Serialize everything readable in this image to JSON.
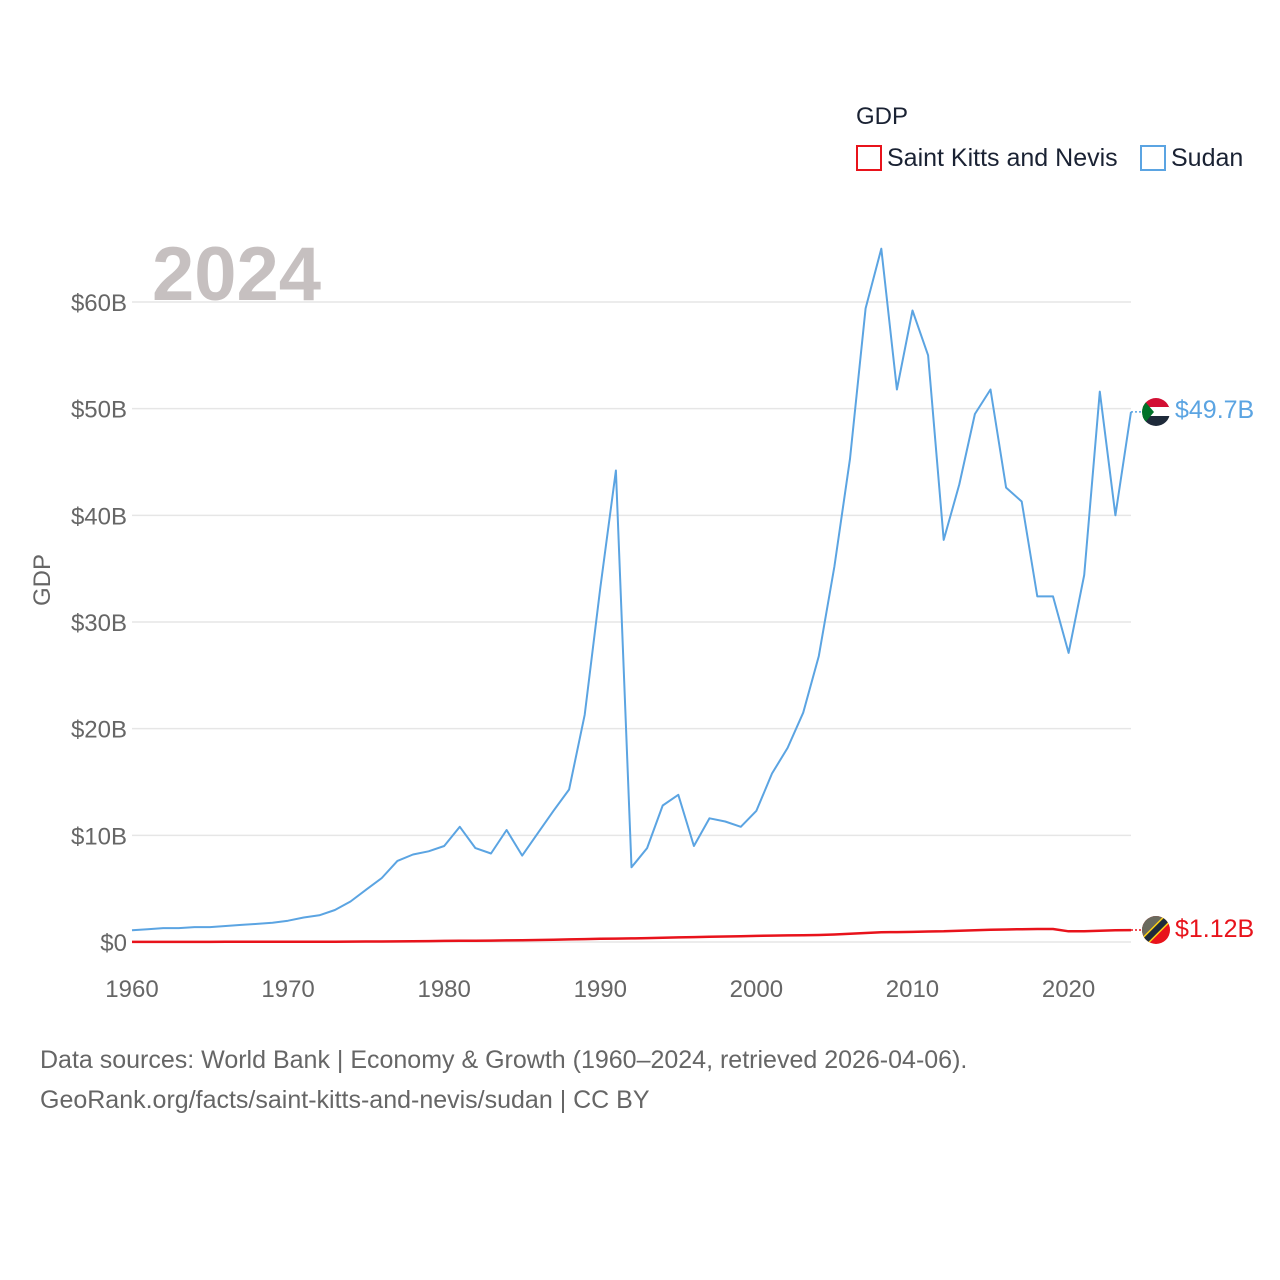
{
  "chart_data": {
    "type": "line",
    "title": "GDP",
    "year_label": "2024",
    "ylabel": "GDP",
    "xlabel": "",
    "x_ticks": [
      1960,
      1970,
      1980,
      1990,
      2000,
      2010,
      2020
    ],
    "y_ticks": [
      0,
      10,
      20,
      30,
      40,
      50,
      60
    ],
    "y_tick_labels": [
      "$0",
      "$10B",
      "$20B",
      "$30B",
      "$40B",
      "$50B",
      "$60B"
    ],
    "xlim": [
      1960,
      2024
    ],
    "ylim": [
      0,
      60
    ],
    "units": "billions USD",
    "legend_position": "top-right",
    "x": [
      1960,
      1961,
      1962,
      1963,
      1964,
      1965,
      1966,
      1967,
      1968,
      1969,
      1970,
      1971,
      1972,
      1973,
      1974,
      1975,
      1976,
      1977,
      1978,
      1979,
      1980,
      1981,
      1982,
      1983,
      1984,
      1985,
      1986,
      1987,
      1988,
      1989,
      1990,
      1991,
      1992,
      1993,
      1994,
      1995,
      1996,
      1997,
      1998,
      1999,
      2000,
      2001,
      2002,
      2003,
      2004,
      2005,
      2006,
      2007,
      2008,
      2009,
      2010,
      2011,
      2012,
      2013,
      2014,
      2015,
      2016,
      2017,
      2018,
      2019,
      2020,
      2021,
      2022,
      2023,
      2024
    ],
    "series": [
      {
        "name": "Saint Kitts and Nevis",
        "color": "#e8131b",
        "end_label": "$1.12B",
        "values": [
          0.01,
          0.01,
          0.01,
          0.01,
          0.01,
          0.01,
          0.02,
          0.02,
          0.02,
          0.02,
          0.02,
          0.02,
          0.03,
          0.03,
          0.04,
          0.05,
          0.05,
          0.06,
          0.07,
          0.08,
          0.1,
          0.11,
          0.12,
          0.13,
          0.15,
          0.17,
          0.19,
          0.21,
          0.24,
          0.27,
          0.3,
          0.32,
          0.34,
          0.37,
          0.4,
          0.43,
          0.46,
          0.5,
          0.52,
          0.54,
          0.57,
          0.6,
          0.62,
          0.63,
          0.66,
          0.7,
          0.78,
          0.84,
          0.92,
          0.93,
          0.95,
          0.98,
          1.0,
          1.06,
          1.1,
          1.14,
          1.17,
          1.2,
          1.22,
          1.22,
          1.0,
          1.01,
          1.05,
          1.1,
          1.12
        ]
      },
      {
        "name": "Sudan",
        "color": "#5ba4e2",
        "end_label": "$49.7B",
        "values": [
          1.1,
          1.2,
          1.3,
          1.3,
          1.4,
          1.4,
          1.5,
          1.6,
          1.7,
          1.8,
          2.0,
          2.3,
          2.5,
          3.0,
          3.8,
          4.9,
          6.0,
          7.6,
          8.2,
          8.5,
          9.0,
          10.8,
          8.8,
          8.3,
          10.5,
          8.1,
          10.2,
          12.3,
          14.3,
          21.3,
          33.2,
          44.2,
          7.0,
          8.8,
          12.8,
          13.8,
          9.0,
          11.6,
          11.3,
          10.8,
          12.3,
          15.8,
          18.2,
          21.5,
          26.8,
          35.2,
          45.3,
          59.4,
          65.0,
          51.8,
          59.2,
          55.0,
          37.7,
          42.9,
          49.5,
          51.8,
          42.6,
          41.3,
          32.4,
          32.4,
          27.1,
          34.4,
          51.6,
          40.0,
          49.7
        ]
      }
    ]
  },
  "footer": {
    "line1": "Data sources: World Bank | Economy & Growth (1960–2024, retrieved 2026-04-06).",
    "line2": "GeoRank.org/facts/saint-kitts-and-nevis/sudan | CC BY"
  }
}
